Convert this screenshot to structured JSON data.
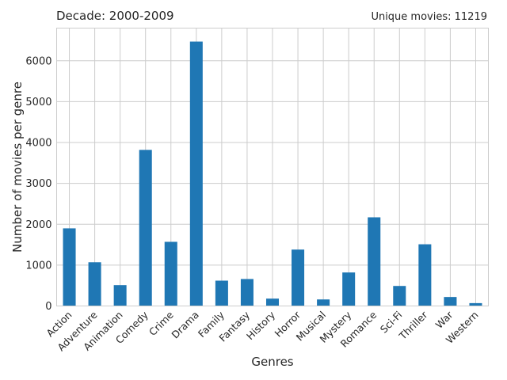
{
  "chart_data": {
    "type": "bar",
    "title": "Decade: 2000-2009",
    "subtitle": "Unique movies: 11219",
    "xlabel": "Genres",
    "ylabel": "Number of movies per genre",
    "ylim": [
      0,
      6800
    ],
    "yticks": [
      0,
      1000,
      2000,
      3000,
      4000,
      5000,
      6000
    ],
    "grid": true,
    "bar_color": "#1f77b4",
    "categories": [
      "Action",
      "Adventure",
      "Animation",
      "Comedy",
      "Crime",
      "Drama",
      "Family",
      "Fantasy",
      "History",
      "Horror",
      "Musical",
      "Mystery",
      "Romance",
      "Sci-Fi",
      "Thriller",
      "War",
      "Western"
    ],
    "values": [
      1900,
      1070,
      510,
      3820,
      1570,
      6470,
      620,
      660,
      180,
      1380,
      160,
      820,
      2170,
      490,
      1510,
      220,
      70
    ]
  }
}
